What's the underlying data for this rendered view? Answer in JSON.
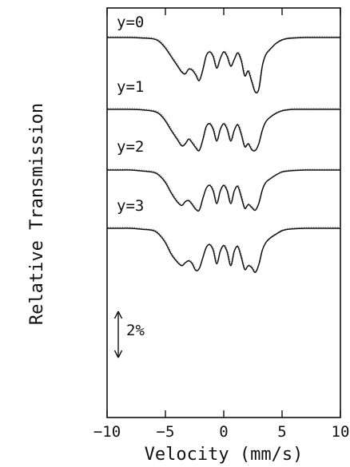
{
  "chart_data": {
    "type": "line",
    "title": "",
    "xlabel": "Velocity (mm/s)",
    "ylabel": "Relative Transmission",
    "xlim": [
      -10,
      10
    ],
    "xticks": [
      -10,
      -5,
      0,
      5,
      10
    ],
    "grid": false,
    "legend": "none",
    "scale_bar": {
      "label": "2%",
      "value_percent": 2
    },
    "x": [
      -10,
      -9,
      -8,
      -7,
      -6,
      -5.5,
      -5,
      -4.5,
      -4,
      -3.6,
      -3.3,
      -3.0,
      -2.7,
      -2.4,
      -2.1,
      -1.8,
      -1.5,
      -1.2,
      -0.9,
      -0.6,
      -0.3,
      0,
      0.3,
      0.6,
      0.9,
      1.2,
      1.5,
      1.8,
      2.1,
      2.4,
      2.7,
      3.0,
      3.3,
      3.6,
      4.0,
      4.5,
      5,
      5.5,
      6,
      7,
      8,
      9,
      10
    ],
    "series": [
      {
        "name": "y=0",
        "values": [
          0,
          0,
          0,
          -0.05,
          -0.15,
          -0.45,
          -1.1,
          -2.0,
          -2.9,
          -3.6,
          -3.8,
          -3.3,
          -3.4,
          -3.9,
          -4.5,
          -3.4,
          -1.9,
          -1.5,
          -2.0,
          -3.2,
          -2.2,
          -1.5,
          -2.0,
          -3.0,
          -2.3,
          -1.6,
          -2.4,
          -4.0,
          -3.5,
          -4.6,
          -5.7,
          -5.4,
          -3.0,
          -1.8,
          -1.2,
          -0.6,
          -0.25,
          -0.1,
          -0.05,
          0,
          0,
          0,
          0
        ]
      },
      {
        "name": "y=1",
        "values": [
          0,
          0,
          0,
          -0.05,
          -0.2,
          -0.5,
          -1.2,
          -2.2,
          -3.1,
          -3.8,
          -3.6,
          -3.1,
          -3.5,
          -4.0,
          -4.3,
          -3.2,
          -1.8,
          -1.5,
          -2.1,
          -3.3,
          -2.1,
          -1.5,
          -2.1,
          -3.3,
          -2.2,
          -1.6,
          -2.6,
          -3.9,
          -3.6,
          -4.2,
          -4.3,
          -3.6,
          -2.2,
          -1.3,
          -0.8,
          -0.4,
          -0.15,
          -0.05,
          0,
          0,
          0,
          0,
          0
        ]
      },
      {
        "name": "y=2",
        "values": [
          0,
          0,
          0,
          -0.1,
          -0.25,
          -0.6,
          -1.3,
          -2.4,
          -3.3,
          -3.7,
          -3.3,
          -3.2,
          -3.6,
          -4.1,
          -4.2,
          -3.0,
          -1.9,
          -1.6,
          -2.2,
          -3.5,
          -2.2,
          -1.6,
          -2.2,
          -3.5,
          -2.2,
          -1.7,
          -2.8,
          -4.0,
          -3.6,
          -3.9,
          -4.2,
          -3.5,
          -2.1,
          -1.3,
          -0.9,
          -0.5,
          -0.2,
          -0.1,
          -0.05,
          0,
          0,
          0,
          0
        ]
      },
      {
        "name": "y=3",
        "values": [
          0,
          0,
          0,
          -0.1,
          -0.25,
          -0.7,
          -1.5,
          -2.7,
          -3.5,
          -3.9,
          -3.6,
          -3.4,
          -3.7,
          -4.4,
          -4.2,
          -3.1,
          -2.0,
          -1.7,
          -2.3,
          -3.7,
          -2.4,
          -1.8,
          -2.5,
          -3.9,
          -2.4,
          -1.9,
          -3.0,
          -4.3,
          -3.9,
          -4.1,
          -4.6,
          -3.8,
          -2.3,
          -1.5,
          -1.0,
          -0.6,
          -0.25,
          -0.1,
          -0.05,
          0,
          0,
          0,
          0
        ]
      }
    ]
  }
}
